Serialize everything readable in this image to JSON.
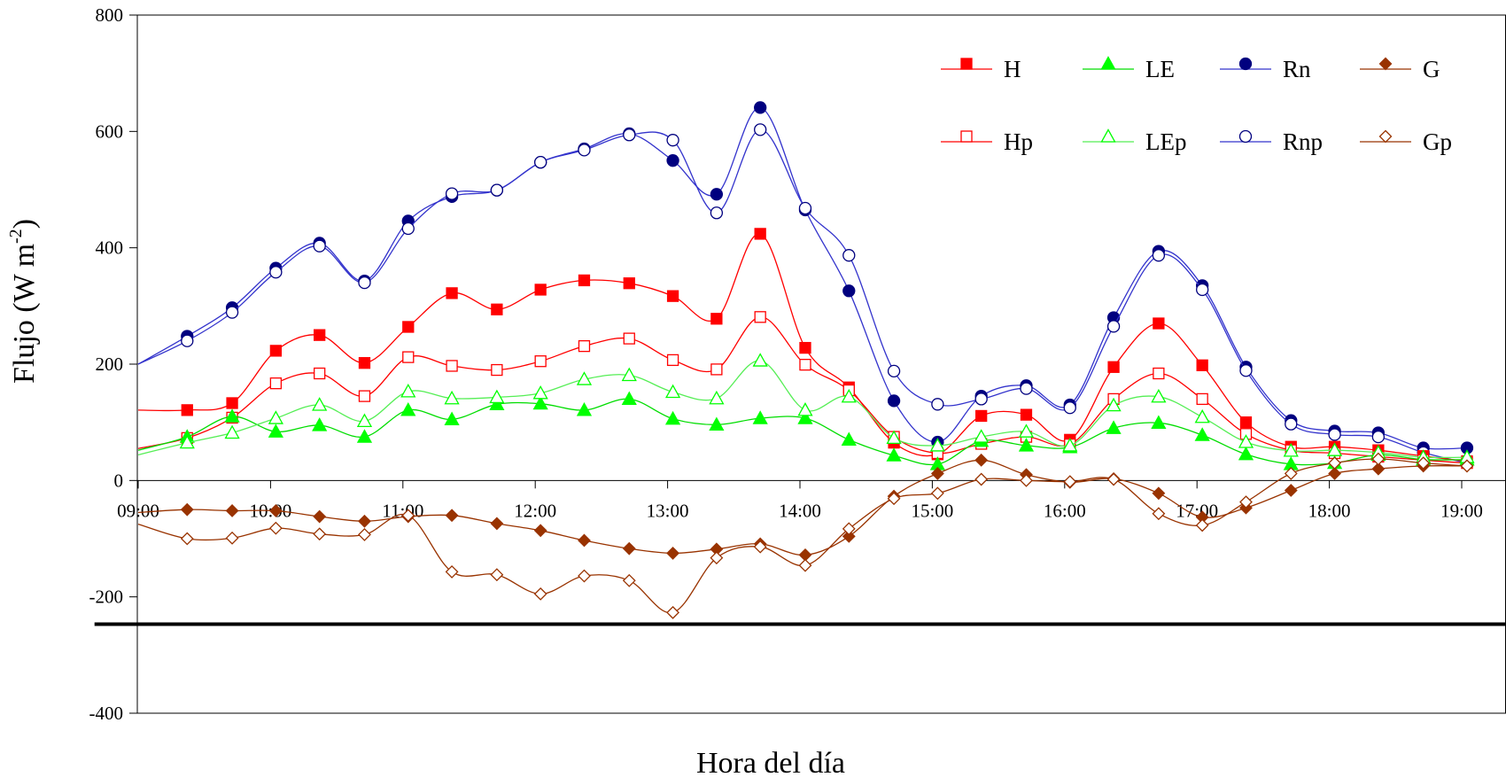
{
  "chart_data": {
    "type": "line",
    "title": "",
    "xlabel": "Hora del día",
    "ylabel": "Flujo (W m-2)",
    "ylabel_parts": {
      "main": "Flujo (W m",
      "sup": "-2",
      "close": ")"
    },
    "ylim": [
      -400,
      800
    ],
    "xlim": [
      9.0,
      19.0
    ],
    "y_ticks": [
      800,
      600,
      400,
      200,
      0,
      -200,
      -400
    ],
    "x_ticks": [
      {
        "label": "09:00",
        "value": 9.0
      },
      {
        "label": "10:00",
        "value": 10.0
      },
      {
        "label": "11:00",
        "value": 11.0
      },
      {
        "label": "12:00",
        "value": 12.0
      },
      {
        "label": "13:00",
        "value": 13.0
      },
      {
        "label": "14:00",
        "value": 14.0
      },
      {
        "label": "15:00",
        "value": 15.0
      },
      {
        "label": "16:00",
        "value": 16.0
      },
      {
        "label": "17:00",
        "value": 17.0
      },
      {
        "label": "18:00",
        "value": 18.0
      },
      {
        "label": "19:00",
        "value": 19.0
      }
    ],
    "reference_line": {
      "y": -247,
      "x_from": 8.67,
      "x_to": 19.9
    },
    "legend_position": "top-right",
    "series": [
      {
        "name": "Rn",
        "color": "#00007f",
        "line_color": "#3333cc",
        "marker": "circle",
        "filled": true,
        "x": [
          9.0,
          9.37,
          9.71,
          10.04,
          10.37,
          10.71,
          11.04,
          11.37,
          11.71,
          12.04,
          12.37,
          12.71,
          13.04,
          13.37,
          13.7,
          14.04,
          14.37,
          14.71,
          15.04,
          15.37,
          15.71,
          16.04,
          16.37,
          16.71,
          17.04,
          17.37,
          17.71,
          18.04,
          18.37,
          18.71,
          19.04
        ],
        "y": [
          200,
          248,
          297,
          365,
          408,
          343,
          446,
          488,
          499,
          547,
          570,
          596,
          550,
          492,
          641,
          465,
          326,
          137,
          66,
          145,
          163,
          130,
          280,
          394,
          335,
          195,
          103,
          85,
          82,
          56,
          56
        ],
        "markers_from_index": 1
      },
      {
        "name": "Rnp",
        "color": "#00007f",
        "line_color": "#3333cc",
        "marker": "circle",
        "filled": false,
        "x": [
          9.0,
          9.37,
          9.71,
          10.04,
          10.37,
          10.71,
          11.04,
          11.37,
          11.71,
          12.04,
          12.37,
          12.71,
          13.04,
          13.37,
          13.7,
          14.04,
          14.37,
          14.71,
          15.04,
          15.37,
          15.71,
          16.04,
          16.37,
          16.71,
          17.04,
          17.37,
          17.71,
          18.04,
          18.37,
          18.71,
          19.04
        ],
        "y": [
          200,
          240,
          289,
          358,
          403,
          340,
          433,
          493,
          499,
          547,
          568,
          594,
          585,
          460,
          603,
          468,
          387,
          188,
          131,
          140,
          158,
          125,
          265,
          387,
          328,
          189,
          97,
          79,
          75,
          48,
          30
        ],
        "markers_from_index": 1
      },
      {
        "name": "H",
        "color": "#ff0000",
        "line_color": "#ff0000",
        "marker": "square",
        "filled": true,
        "x": [
          9.0,
          9.37,
          9.71,
          10.04,
          10.37,
          10.71,
          11.04,
          11.37,
          11.71,
          12.04,
          12.37,
          12.71,
          13.04,
          13.37,
          13.7,
          14.04,
          14.37,
          14.71,
          15.04,
          15.37,
          15.71,
          16.04,
          16.37,
          16.71,
          17.04,
          17.37,
          17.71,
          18.04,
          18.37,
          18.71,
          19.04
        ],
        "y": [
          121,
          121,
          133,
          223,
          250,
          202,
          264,
          322,
          294,
          328,
          344,
          339,
          317,
          278,
          424,
          228,
          160,
          65,
          45,
          111,
          113,
          70,
          195,
          270,
          198,
          100,
          58,
          58,
          52,
          42,
          33
        ],
        "markers_from_index": 1
      },
      {
        "name": "Hp",
        "color": "#ff0000",
        "line_color": "#ff0000",
        "marker": "square",
        "filled": false,
        "x": [
          9.0,
          9.37,
          9.71,
          10.04,
          10.37,
          10.71,
          11.04,
          11.37,
          11.71,
          12.04,
          12.37,
          12.71,
          13.04,
          13.37,
          13.7,
          14.04,
          14.37,
          14.71,
          15.04,
          15.37,
          15.71,
          16.04,
          16.37,
          16.71,
          17.04,
          17.37,
          17.71,
          18.04,
          18.37,
          18.71,
          19.04
        ],
        "y": [
          55,
          73,
          108,
          167,
          184,
          145,
          212,
          197,
          190,
          205,
          231,
          244,
          207,
          191,
          281,
          199,
          155,
          75,
          47,
          63,
          75,
          62,
          140,
          184,
          140,
          80,
          52,
          47,
          41,
          35,
          30
        ],
        "markers_from_index": 1
      },
      {
        "name": "LE",
        "color": "#00ff00",
        "line_color": "#00dd00",
        "marker": "triangle",
        "filled": true,
        "x": [
          9.0,
          9.37,
          9.71,
          10.04,
          10.37,
          10.71,
          11.04,
          11.37,
          11.71,
          12.04,
          12.37,
          12.71,
          13.04,
          13.37,
          13.7,
          14.04,
          14.37,
          14.71,
          15.04,
          15.37,
          15.71,
          16.04,
          16.37,
          16.71,
          17.04,
          17.37,
          17.71,
          18.04,
          18.37,
          18.71,
          19.04
        ],
        "y": [
          52,
          75,
          110,
          84,
          95,
          75,
          121,
          105,
          131,
          132,
          121,
          140,
          106,
          96,
          107,
          107,
          70,
          43,
          28,
          68,
          60,
          57,
          90,
          99,
          78,
          45,
          28,
          30,
          44,
          36,
          36
        ],
        "markers_from_index": 1
      },
      {
        "name": "LEp",
        "color": "#00ff00",
        "line_color": "#55ee55",
        "marker": "triangle",
        "filled": false,
        "x": [
          9.0,
          9.37,
          9.71,
          10.04,
          10.37,
          10.71,
          11.04,
          11.37,
          11.71,
          12.04,
          12.37,
          12.71,
          13.04,
          13.37,
          13.7,
          14.04,
          14.37,
          14.71,
          15.04,
          15.37,
          15.71,
          16.04,
          16.37,
          16.71,
          17.04,
          17.37,
          17.71,
          18.04,
          18.37,
          18.71,
          19.04
        ],
        "y": [
          44,
          65,
          82,
          107,
          130,
          102,
          153,
          141,
          143,
          150,
          174,
          181,
          152,
          141,
          206,
          121,
          144,
          73,
          60,
          75,
          84,
          60,
          129,
          144,
          109,
          66,
          51,
          52,
          48,
          40,
          40
        ],
        "markers_from_index": 1
      },
      {
        "name": "G",
        "color": "#993300",
        "line_color": "#993300",
        "marker": "diamond",
        "filled": true,
        "x": [
          9.0,
          9.37,
          9.71,
          10.04,
          10.37,
          10.71,
          11.04,
          11.37,
          11.71,
          12.04,
          12.37,
          12.71,
          13.04,
          13.37,
          13.7,
          14.04,
          14.37,
          14.71,
          15.04,
          15.37,
          15.71,
          16.04,
          16.37,
          16.71,
          17.04,
          17.37,
          17.71,
          18.04,
          18.37,
          18.71,
          19.04
        ],
        "y": [
          -55,
          -50,
          -52,
          -52,
          -62,
          -70,
          -62,
          -60,
          -74,
          -86,
          -103,
          -117,
          -125,
          -118,
          -109,
          -128,
          -96,
          -27,
          12,
          35,
          10,
          -3,
          3,
          -22,
          -63,
          -47,
          -17,
          12,
          20,
          25,
          25
        ],
        "markers_from_index": 1
      },
      {
        "name": "Gp",
        "color": "#993300",
        "line_color": "#993300",
        "marker": "diamond",
        "filled": false,
        "x": [
          9.0,
          9.37,
          9.71,
          10.04,
          10.37,
          10.71,
          11.04,
          11.37,
          11.71,
          12.04,
          12.37,
          12.71,
          13.04,
          13.37,
          13.7,
          14.04,
          14.37,
          14.71,
          15.04,
          15.37,
          15.71,
          16.04,
          16.37,
          16.71,
          17.04,
          17.37,
          17.71,
          18.04,
          18.37,
          18.71,
          19.04
        ],
        "y": [
          -75,
          -100,
          -99,
          -82,
          -92,
          -93,
          -60,
          -157,
          -162,
          -195,
          -164,
          -172,
          -227,
          -133,
          -114,
          -146,
          -83,
          -31,
          -22,
          2,
          0,
          -2,
          2,
          -57,
          -77,
          -37,
          12,
          30,
          37,
          30,
          25
        ],
        "markers_from_index": 1
      }
    ],
    "legend": {
      "rows": [
        [
          "H",
          "LE",
          "Rn",
          "G"
        ],
        [
          "Hp",
          "LEp",
          "Rnp",
          "Gp"
        ]
      ]
    }
  }
}
